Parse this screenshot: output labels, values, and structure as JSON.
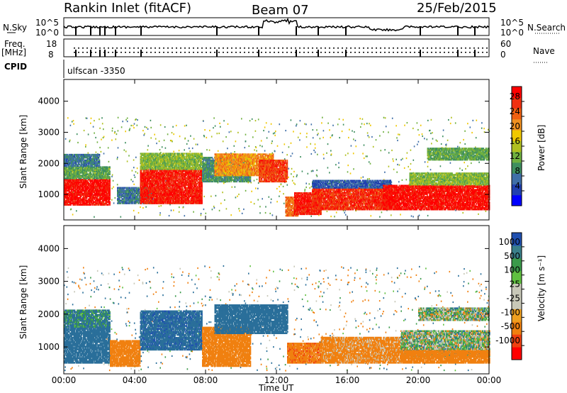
{
  "header": {
    "station": "Rankin Inlet (fitACF)",
    "beam": "Beam 07",
    "date": "25/Feb/2015"
  },
  "top_panel": {
    "nsky_label": "N.Sky",
    "nsearch_label": "N.Search",
    "noise_tick_hi": "10^5",
    "noise_tick_lo": "10^0",
    "freq_label_1": "Freq.",
    "freq_label_2": "[MHz]",
    "freq_tick_hi": "18",
    "freq_tick_lo": "8",
    "nave_label": "Nave",
    "nave_tick_hi": "60",
    "nave_tick_lo": "0",
    "cpid_label": "CPID",
    "cpid_value": "ulfscan -3350"
  },
  "chart_data": [
    {
      "type": "heatmap",
      "title": "",
      "xlabel": "Time UT",
      "ylabel": "Slant Range [km]",
      "x_ticks": [
        "00:00",
        "04:00",
        "08:00",
        "12:00",
        "16:00",
        "20:00",
        "00:00"
      ],
      "y_ticks": [
        "1000",
        "2000",
        "3000",
        "4000"
      ],
      "xlim_hours": [
        0,
        24
      ],
      "ylim_km": [
        180,
        4700
      ],
      "colorbar": {
        "label": "Power [dB]",
        "ticks": [
          "4",
          "8",
          "12",
          "16",
          "20",
          "24",
          "28"
        ],
        "range": [
          0,
          32
        ],
        "colors": [
          "#0000ff",
          "#2040b0",
          "#3f6fa8",
          "#3f8f5f",
          "#6fb040",
          "#b0c020",
          "#f0c800",
          "#f09020",
          "#f06010",
          "#f03010",
          "#ff0000"
        ]
      },
      "regions": [
        {
          "t0": 0.0,
          "t1": 2.6,
          "r0": 650,
          "r1": 1500,
          "v": 30
        },
        {
          "t0": 0.0,
          "t1": 2.6,
          "r0": 1500,
          "r1": 1900,
          "v": 12
        },
        {
          "t0": 0.0,
          "t1": 2.0,
          "r0": 1900,
          "r1": 2300,
          "v": 8
        },
        {
          "t0": 3.0,
          "t1": 5.0,
          "r0": 700,
          "r1": 1200,
          "v": 8
        },
        {
          "t0": 4.3,
          "t1": 7.8,
          "r0": 700,
          "r1": 1800,
          "v": 29
        },
        {
          "t0": 4.3,
          "t1": 7.8,
          "r0": 1800,
          "r1": 2300,
          "v": 14
        },
        {
          "t0": 7.8,
          "t1": 10.5,
          "r0": 1400,
          "r1": 2200,
          "v": 10
        },
        {
          "t0": 8.5,
          "t1": 11.8,
          "r0": 1600,
          "r1": 2300,
          "v": 22
        },
        {
          "t0": 11.0,
          "t1": 12.6,
          "r0": 1400,
          "r1": 2100,
          "v": 27
        },
        {
          "t0": 12.5,
          "t1": 13.2,
          "r0": 300,
          "r1": 900,
          "v": 24
        },
        {
          "t0": 13.0,
          "t1": 14.5,
          "r0": 350,
          "r1": 1050,
          "v": 29
        },
        {
          "t0": 14.0,
          "t1": 18.5,
          "r0": 500,
          "r1": 1200,
          "v": 28
        },
        {
          "t0": 14.0,
          "t1": 18.5,
          "r0": 1200,
          "r1": 1450,
          "v": 6
        },
        {
          "t0": 18.0,
          "t1": 24.0,
          "r0": 500,
          "r1": 1300,
          "v": 30
        },
        {
          "t0": 19.5,
          "t1": 24.0,
          "r0": 1300,
          "r1": 1700,
          "v": 14
        },
        {
          "t0": 20.5,
          "t1": 24.0,
          "r0": 2100,
          "r1": 2500,
          "v": 12
        }
      ]
    },
    {
      "type": "heatmap",
      "title": "",
      "xlabel": "Time UT",
      "ylabel": "Slant Range [km]",
      "x_ticks": [
        "00:00",
        "04:00",
        "08:00",
        "12:00",
        "16:00",
        "20:00",
        "00:00"
      ],
      "y_ticks": [
        "1000",
        "2000",
        "3000",
        "4000"
      ],
      "xlim_hours": [
        0,
        24
      ],
      "ylim_km": [
        180,
        4700
      ],
      "colorbar": {
        "label": "Velocity [m s⁻¹]",
        "ticks": [
          "1000",
          "500",
          "100",
          "25",
          "-25",
          "-100",
          "-500",
          "-1000"
        ],
        "colors": [
          "#2050b0",
          "#3a7f8a",
          "#3a9a4a",
          "#60c040",
          "#c8c8b8",
          "#c8c8b8",
          "#f0a020",
          "#f08010",
          "#f04010",
          "#ff0000"
        ]
      },
      "regions": [
        {
          "t0": 0.0,
          "t1": 2.6,
          "r0": 500,
          "r1": 1600,
          "v": 300
        },
        {
          "t0": 0.0,
          "t1": 2.6,
          "r0": 1600,
          "r1": 2100,
          "v": 150
        },
        {
          "t0": 2.6,
          "t1": 4.3,
          "r0": 400,
          "r1": 1200,
          "v": -300
        },
        {
          "t0": 4.3,
          "t1": 7.8,
          "r0": 900,
          "r1": 2100,
          "v": 400
        },
        {
          "t0": 7.8,
          "t1": 10.5,
          "r0": 400,
          "r1": 1600,
          "v": -250
        },
        {
          "t0": 8.5,
          "t1": 12.6,
          "r0": 1400,
          "r1": 2300,
          "v": 350
        },
        {
          "t0": 12.6,
          "t1": 14.5,
          "r0": 500,
          "r1": 1100,
          "v": -400
        },
        {
          "t0": 14.5,
          "t1": 19.0,
          "r0": 500,
          "r1": 1300,
          "v": -200
        },
        {
          "t0": 19.0,
          "t1": 24.0,
          "r0": 700,
          "r1": 1500,
          "v": 0
        },
        {
          "t0": 19.0,
          "t1": 24.0,
          "r0": 500,
          "r1": 900,
          "v": -300
        },
        {
          "t0": 20.0,
          "t1": 24.0,
          "r0": 1800,
          "r1": 2200,
          "v": 0
        }
      ]
    }
  ]
}
